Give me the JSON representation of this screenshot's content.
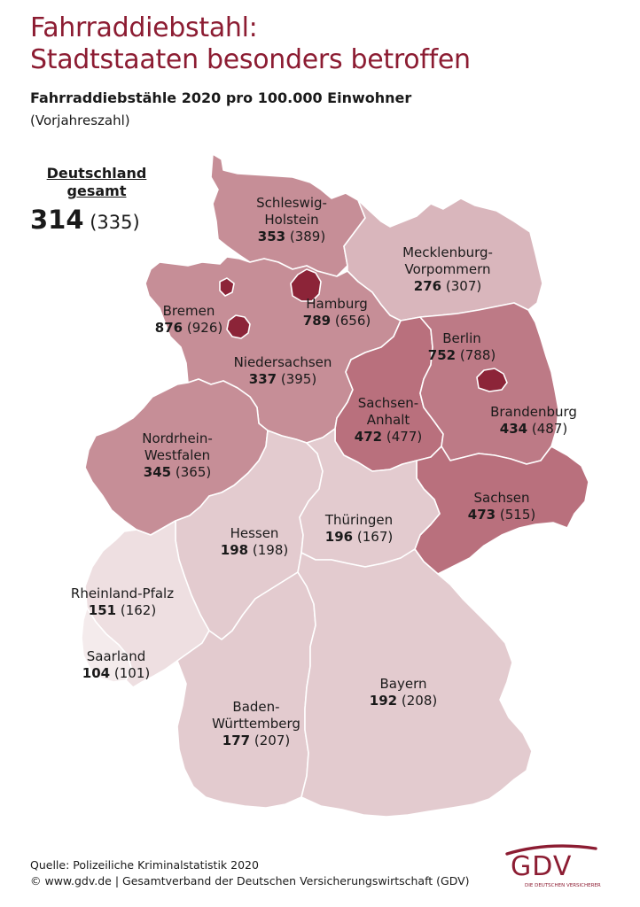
{
  "title": {
    "line1": "Fahrraddiebstahl:",
    "line2": "Stadtstaaten besonders betroffen"
  },
  "subtitle": "Fahrraddiebstähle 2020 pro 100.000 Einwohner",
  "subnote": "(Vorjahreszahl)",
  "total": {
    "label_line1": "Deutschland",
    "label_line2": "gesamt",
    "value": "314",
    "prev": "(335)"
  },
  "states": [
    {
      "id": "sh",
      "name": [
        "Schleswig-",
        "Holstein"
      ],
      "value": "353",
      "prev": "(389)",
      "color": "#c68e97"
    },
    {
      "id": "mv",
      "name": [
        "Mecklenburg-",
        "Vorpommern"
      ],
      "value": "276",
      "prev": "(307)",
      "color": "#d9b6bc"
    },
    {
      "id": "hh",
      "name": [
        "Hamburg"
      ],
      "value": "789",
      "prev": "(656)",
      "color": "#8c2438"
    },
    {
      "id": "hb",
      "name": [
        "Bremen"
      ],
      "value": "876",
      "prev": "(926)",
      "color": "#8c2438"
    },
    {
      "id": "ni",
      "name": [
        "Niedersachsen"
      ],
      "value": "337",
      "prev": "(395)",
      "color": "#c68e97"
    },
    {
      "id": "be",
      "name": [
        "Berlin"
      ],
      "value": "752",
      "prev": "(788)",
      "color": "#8c2438"
    },
    {
      "id": "st",
      "name": [
        "Sachsen-",
        "Anhalt"
      ],
      "value": "472",
      "prev": "(477)",
      "color": "#b9707d"
    },
    {
      "id": "bb",
      "name": [
        "Brandenburg"
      ],
      "value": "434",
      "prev": "(487)",
      "color": "#bd7a86"
    },
    {
      "id": "nw",
      "name": [
        "Nordrhein-",
        "Westfalen"
      ],
      "value": "345",
      "prev": "(365)",
      "color": "#c68e97"
    },
    {
      "id": "sn",
      "name": [
        "Sachsen"
      ],
      "value": "473",
      "prev": "(515)",
      "color": "#b9707d"
    },
    {
      "id": "he",
      "name": [
        "Hessen"
      ],
      "value": "198",
      "prev": "(198)",
      "color": "#e3cbcf"
    },
    {
      "id": "th",
      "name": [
        "Thüringen"
      ],
      "value": "196",
      "prev": "(167)",
      "color": "#e3cbcf"
    },
    {
      "id": "rp",
      "name": [
        "Rheinland-Pfalz"
      ],
      "value": "151",
      "prev": "(162)",
      "color": "#eedfe1"
    },
    {
      "id": "sl",
      "name": [
        "Saarland"
      ],
      "value": "104",
      "prev": "(101)",
      "color": "#f4ebec"
    },
    {
      "id": "by",
      "name": [
        "Bayern"
      ],
      "value": "192",
      "prev": "(208)",
      "color": "#e3cbcf"
    },
    {
      "id": "bw",
      "name": [
        "Baden-",
        "Württemberg"
      ],
      "value": "177",
      "prev": "(207)",
      "color": "#e3cbcf"
    }
  ],
  "footer": {
    "source": "Quelle: Polizeiliche Kriminalstatistik 2020",
    "copyright": "© www.gdv.de | Gesamtverband der Deutschen Versicherungswirtschaft (GDV)"
  },
  "logo": {
    "word": "GDV",
    "tagline": "DIE DEUTSCHEN VERSICHERER",
    "color": "#8c1c32"
  }
}
